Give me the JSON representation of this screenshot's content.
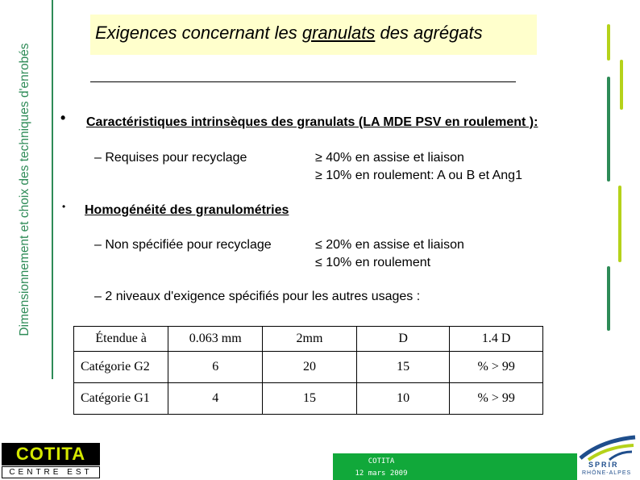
{
  "sidebar": {
    "text": "Dimensionnement et choix des techniques d'enrobés"
  },
  "title": {
    "part1": "Exigences concernant les ",
    "underlined": "granulats",
    "part2": " des agrégats"
  },
  "sections": [
    {
      "heading": "Caractéristiques intrinsèques des granulats (LA  MDE   PSV en roulement ):",
      "dash_label": "–  Requises pour recyclage",
      "values": [
        "≥ 40% en assise et liaison",
        "≥ 10% en roulement: A ou B et Ang1"
      ]
    },
    {
      "heading": "Homogénéité des granulométries",
      "dash_label": "–  Non spécifiée pour recyclage",
      "values": [
        "≤ 20% en assise et liaison",
        " ≤  10% en roulement"
      ],
      "extra_line": "–  2 niveaux d'exigence spécifiés pour les autres usages :"
    }
  ],
  "table": {
    "header": [
      "Étendue à",
      "0.063 mm",
      "2mm",
      "D",
      "1.4 D"
    ],
    "rows": [
      [
        "Catégorie G2",
        "6",
        "20",
        "15",
        "% > 99"
      ],
      [
        "Catégorie G1",
        "4",
        "15",
        "10",
        "% > 99"
      ]
    ]
  },
  "footer": {
    "left_logo_main": "COTITA",
    "left_logo_sub": "CENTRE EST",
    "center_line1": "COTITA",
    "center_line2": "12 mars 2009",
    "right_logo_line1": "SPRIR",
    "right_logo_line2": "RHÔNE-ALPES"
  },
  "colors": {
    "sidebar_green": "#2e8b57",
    "title_bg": "#ffffcc",
    "footer_green": "#11a83a",
    "accent_lime": "#b5d21a"
  }
}
